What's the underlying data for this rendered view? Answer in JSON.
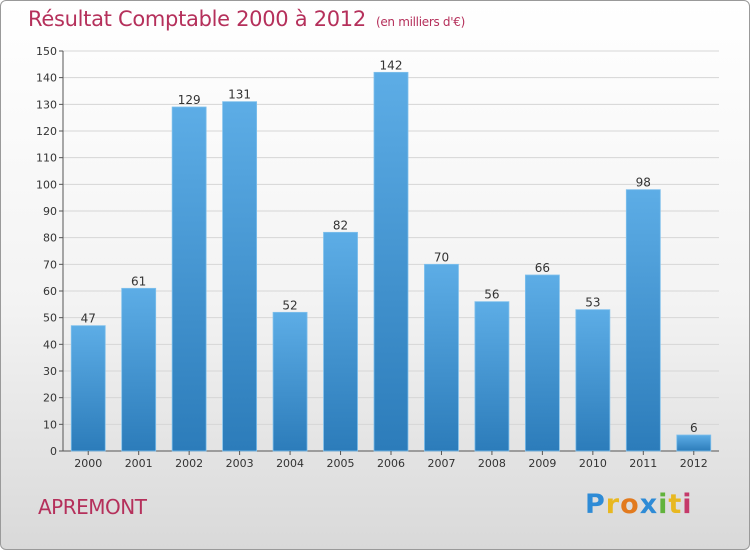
{
  "header": {
    "title": "Résultat Comptable 2000 à 2012",
    "subtitle": "(en milliers d'€)"
  },
  "footer": {
    "commune": "APREMONT",
    "logo": "Proxiti"
  },
  "colors": {
    "bar_top": "#5dade6",
    "bar_bottom": "#2c7cba",
    "title": "#b5305b"
  },
  "chart_data": {
    "type": "bar",
    "title": "Résultat Comptable 2000 à 2012",
    "subtitle": "(en milliers d'€)",
    "xlabel": "",
    "ylabel": "",
    "ylim": [
      0,
      150
    ],
    "yticks": [
      0,
      10,
      20,
      30,
      40,
      50,
      60,
      70,
      80,
      90,
      100,
      110,
      120,
      130,
      140,
      150
    ],
    "grid": true,
    "categories": [
      "2000",
      "2001",
      "2002",
      "2003",
      "2004",
      "2005",
      "2006",
      "2007",
      "2008",
      "2009",
      "2010",
      "2011",
      "2012"
    ],
    "values": [
      47,
      61,
      129,
      131,
      52,
      82,
      142,
      70,
      56,
      66,
      53,
      98,
      6
    ]
  }
}
